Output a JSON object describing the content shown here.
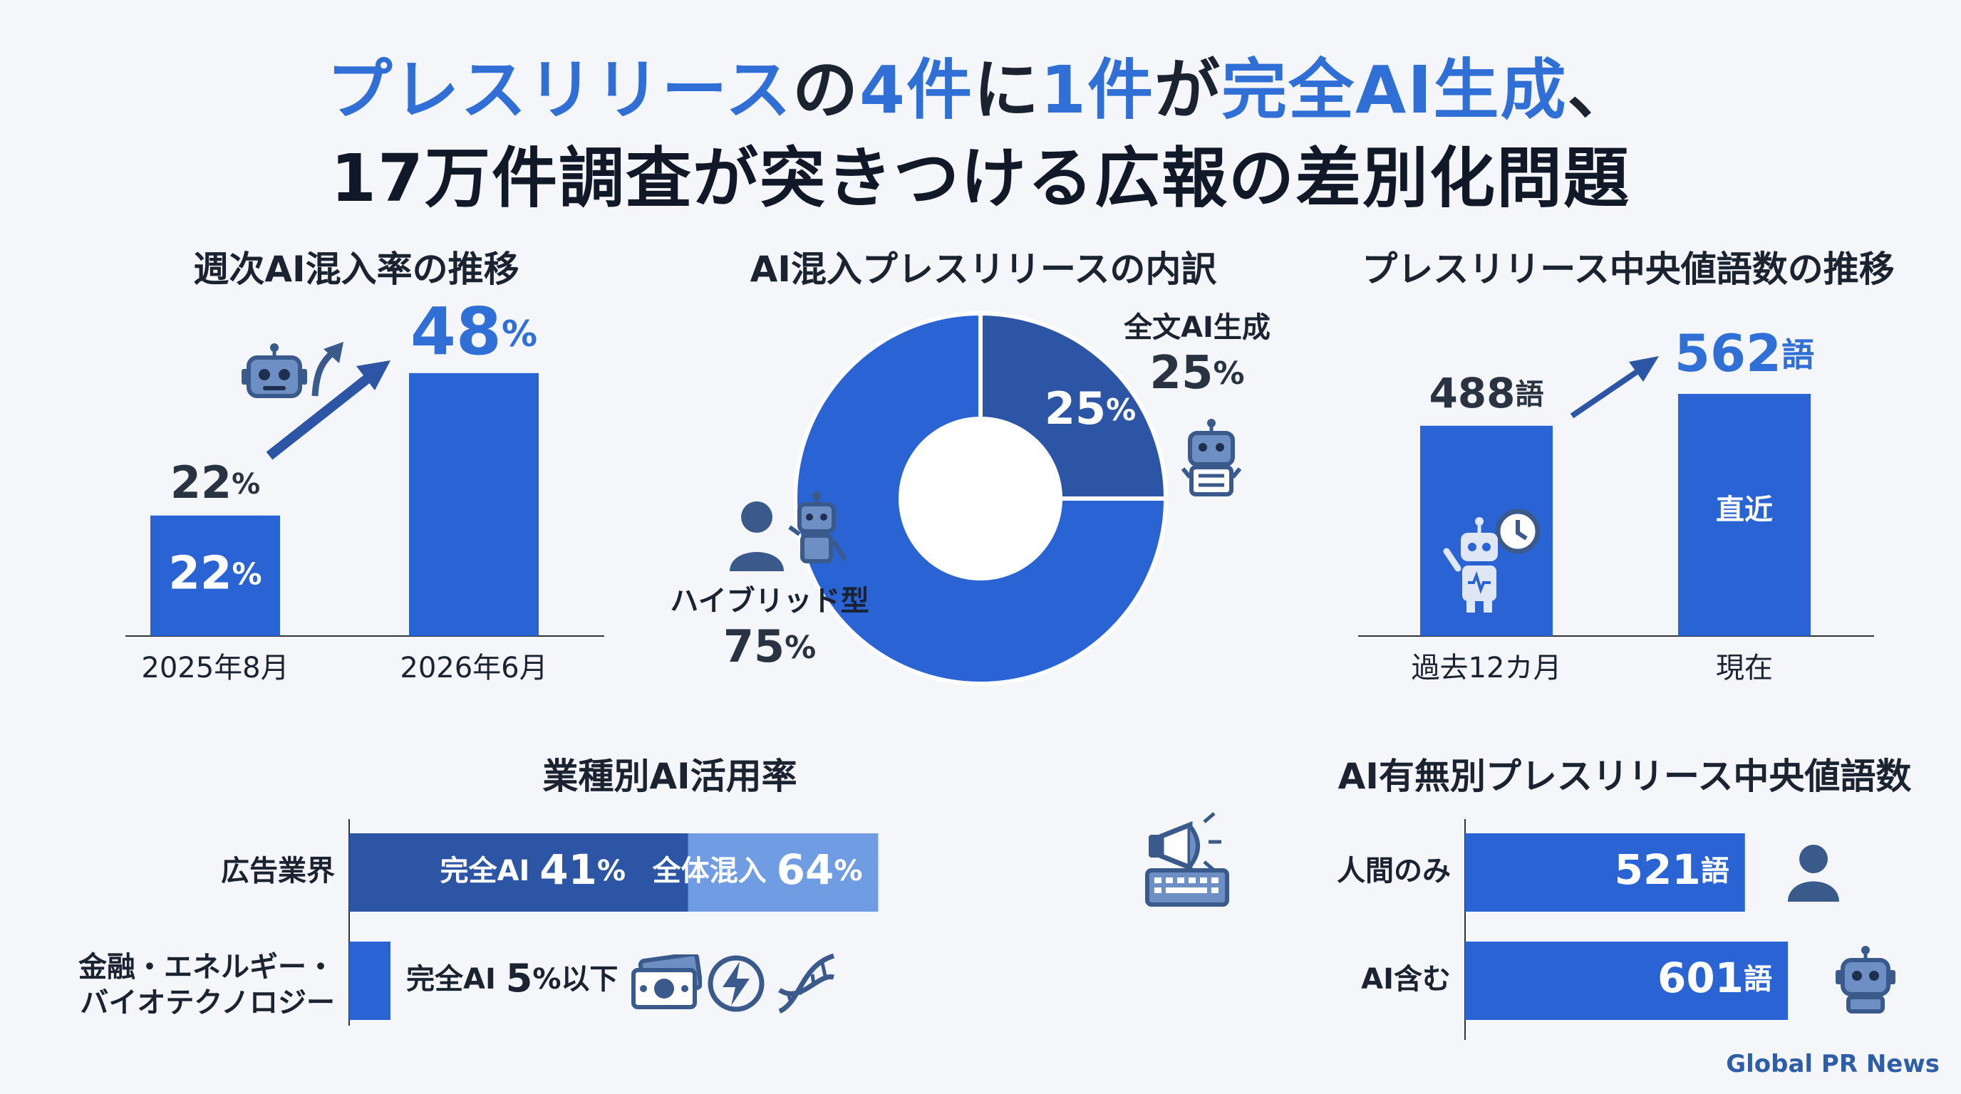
{
  "title": {
    "line1": [
      {
        "text": "プレスリリース",
        "accent": true
      },
      {
        "text": "の",
        "accent": false
      },
      {
        "text": "4件",
        "accent": true
      },
      {
        "text": "に",
        "accent": false
      },
      {
        "text": "1件",
        "accent": true
      },
      {
        "text": "が",
        "accent": false
      },
      {
        "text": "完全AI生成",
        "accent": true
      },
      {
        "text": "、",
        "accent": false
      }
    ],
    "line2": "17万件調査が突きつける広報の差別化問題"
  },
  "colors": {
    "bar": "#2a64d4",
    "bar_dark": "#2c55a5",
    "bar_light": "#6f9ce3",
    "accent_text": "#2f6fd6",
    "icon": "#3b5a8c",
    "icon_fill": "#6e8fc4"
  },
  "brand": "Global PR News",
  "chart_data": [
    {
      "type": "bar",
      "title": "週次AI混入率の推移",
      "categories": [
        "2025年8月",
        "2026年6月"
      ],
      "values": [
        22,
        48
      ],
      "value_labels": [
        "22%",
        "48%"
      ],
      "inner_labels": [
        "22%",
        ""
      ],
      "unit": "%",
      "ylim": [
        0,
        55
      ],
      "icons": [
        "robot-icon",
        "up-arrow-icon"
      ]
    },
    {
      "type": "pie",
      "donut": true,
      "title": "AI混入プレスリリースの内訳",
      "series": [
        {
          "name": "全文AI生成",
          "value": 25,
          "label": "25%",
          "inner_label": "25%"
        },
        {
          "name": "ハイブリッド型",
          "value": 75,
          "label": "75%"
        }
      ]
    },
    {
      "type": "bar",
      "title": "プレスリリース中央値語数の推移",
      "categories": [
        "過去12カ月",
        "現在"
      ],
      "values": [
        488,
        562
      ],
      "value_labels": [
        "488語",
        "562語"
      ],
      "inner_labels": [
        "",
        "直近"
      ],
      "unit": "語",
      "ylim": [
        0,
        600
      ]
    },
    {
      "type": "bar",
      "orientation": "horizontal",
      "title": "業種別AI活用率",
      "categories": [
        "広告業界",
        "金融・エネルギー・バイオテクノロジー"
      ],
      "category_lines": [
        [
          "広告業界"
        ],
        [
          "金融・エネルギー・",
          "バイオテクノロジー"
        ]
      ],
      "series": [
        {
          "name": "完全AI",
          "values": [
            41,
            5
          ],
          "labels": [
            "完全AI 41%",
            "完全AI 5%以下"
          ]
        },
        {
          "name": "全体混入",
          "values": [
            64,
            null
          ],
          "labels": [
            "全体混入 64%",
            ""
          ]
        }
      ],
      "xlim": [
        0,
        100
      ],
      "unit": "%"
    },
    {
      "type": "bar",
      "orientation": "horizontal",
      "title": "AI有無別プレスリリース中央値語数",
      "categories": [
        "人間のみ",
        "AI含む"
      ],
      "values": [
        521,
        601
      ],
      "value_labels": [
        "521語",
        "601語"
      ],
      "unit": "語",
      "xlim": [
        0,
        650
      ]
    }
  ]
}
